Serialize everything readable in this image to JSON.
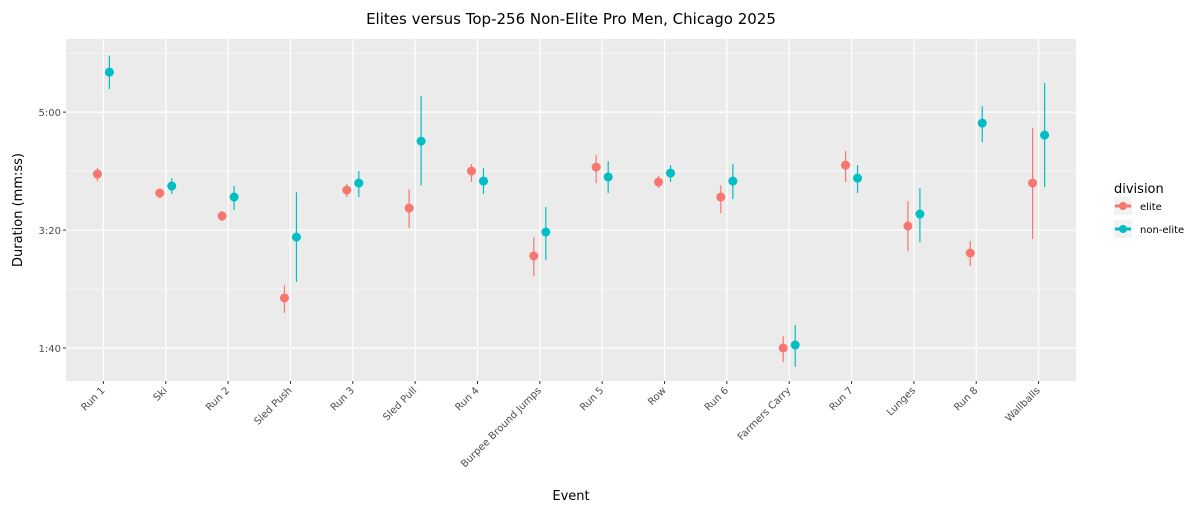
{
  "chart_data": {
    "type": "scatter",
    "title": "Elites versus Top-256 Non-Elite Pro Men, Chicago 2025",
    "xlabel": "Event",
    "ylabel": "Duration (mm:ss)",
    "categories": [
      "Run 1",
      "Ski",
      "Run 2",
      "Sled Push",
      "Run 3",
      "Sled Pull",
      "Run 4",
      "Burpee Bround Jumps",
      "Run 5",
      "Row",
      "Run 6",
      "Farmers Carry",
      "Run 7",
      "Lunges",
      "Run 8",
      "Wallballs"
    ],
    "y_unit": "seconds",
    "ylim": [
      72,
      362
    ],
    "y_ticks": [
      {
        "value": 100,
        "label": "1:40"
      },
      {
        "value": 200,
        "label": "3:20"
      },
      {
        "value": 300,
        "label": "5:00"
      }
    ],
    "grid": true,
    "legend": {
      "title": "division",
      "placement": "right"
    },
    "series": [
      {
        "name": "elite",
        "color": "#F8766D",
        "values": [
          247.5,
          231.4,
          211.9,
          142.4,
          233.9,
          218.6,
          250,
          178,
          253.4,
          240.7,
          228,
          100,
          255,
          203.4,
          180.5,
          239.8
        ],
        "low": [
          241.5,
          227,
          207.6,
          129.7,
          228,
          201.7,
          240.7,
          161,
          239.8,
          235.6,
          214.4,
          88,
          240.7,
          182.2,
          169.5,
          192.4
        ],
        "high": [
          252.5,
          234.7,
          216,
          153.4,
          239,
          234.7,
          256,
          194,
          263.6,
          245.8,
          238,
          110,
          267,
          224.6,
          190.7,
          286.4
        ]
      },
      {
        "name": "non-elite",
        "color": "#00BFC4",
        "values": [
          333.9,
          237.3,
          228,
          194,
          239.8,
          275.4,
          241.5,
          198.3,
          245,
          248.3,
          241.5,
          102.5,
          244,
          213.6,
          290.7,
          280.5
        ],
        "low": [
          319.5,
          230.5,
          217,
          156,
          228,
          238,
          230.5,
          174.6,
          231.4,
          240.7,
          226.3,
          84,
          231.4,
          189.8,
          274.6,
          236.4
        ],
        "high": [
          348,
          244,
          237.3,
          232,
          250,
          313.6,
          252.5,
          219.5,
          258.5,
          255,
          256,
          119.5,
          255,
          235.6,
          305,
          324.6
        ]
      }
    ]
  }
}
